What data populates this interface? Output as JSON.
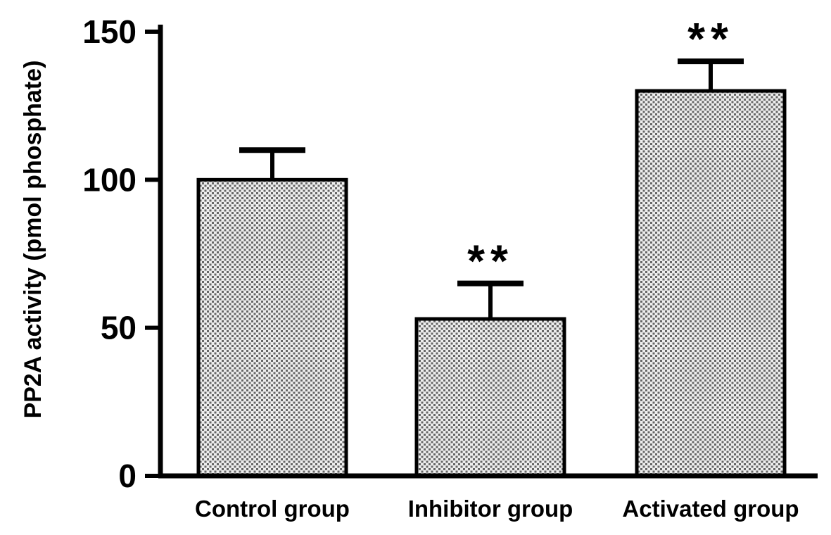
{
  "chart_data": {
    "type": "bar",
    "title": "",
    "xlabel": "",
    "ylabel": "PP2A activity (pmol phosphate)",
    "categories": [
      "Control group",
      "Inhibitor group",
      "Activated group"
    ],
    "values": [
      100,
      53,
      130
    ],
    "errors": [
      10,
      12,
      10
    ],
    "error_bar_direction": "upper_only",
    "annotations": [
      "",
      "**",
      "**"
    ],
    "yticks": [
      0,
      50,
      100,
      150
    ],
    "ylim": [
      0,
      150
    ],
    "grid": false,
    "legend": "none",
    "axis_color": "#000000",
    "bar_fill_style": "checkerboard-stipple",
    "pattern_background": "#eeeeee",
    "pattern_dot": "#666666"
  }
}
